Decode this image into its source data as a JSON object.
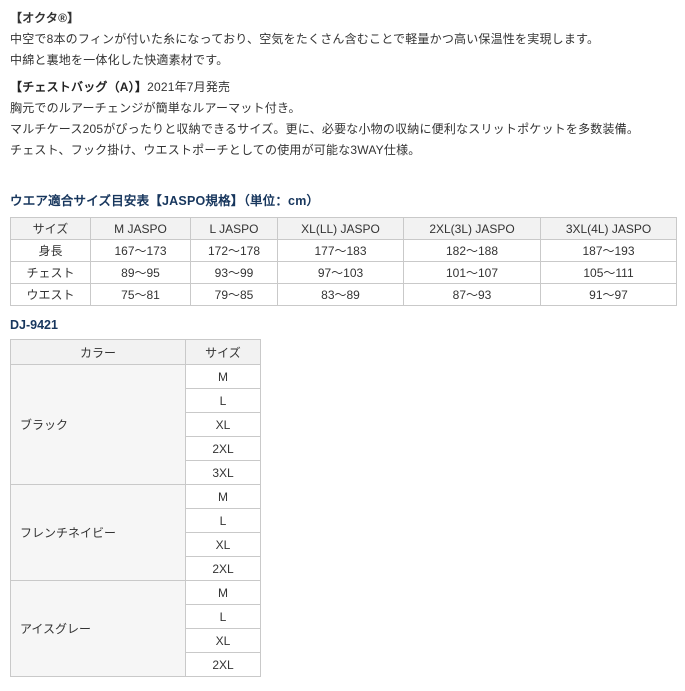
{
  "page": {
    "background": "#ffffff",
    "text_color": "#333333",
    "accent_blue": "#17365d",
    "table_border_color": "#c9c9c9",
    "table_header_bg": "#f2f2f2",
    "color_cell_bg": "#f6f6f6"
  },
  "description": {
    "octa_heading": "【オクタ®】",
    "octa_lines": [
      "中空で8本のフィンが付いた糸になっており、空気をたくさん含むことで軽量かつ高い保温性を実現します。",
      "中綿と裏地を一体化した快適素材です。"
    ],
    "chestbag_heading": "【チェストバッグ（A）】",
    "chestbag_release": "2021年7月発売",
    "chestbag_lines": [
      "胸元でのルアーチェンジが簡単なルアーマット付き。",
      "マルチケース205がぴったりと収納できるサイズ。更に、必要な小物の収納に便利なスリットポケットを多数装備。",
      "チェスト、フック掛け、ウエストポーチとしての使用が可能な3WAY仕様。"
    ]
  },
  "size_table": {
    "title": "ウエア適合サイズ目安表【JASPO規格】（単位：cm）",
    "headers": [
      "サイズ",
      "M JASPO",
      "L JASPO",
      "XL(LL) JASPO",
      "2XL(3L) JASPO",
      "3XL(4L) JASPO"
    ],
    "rows": [
      {
        "label": "身長",
        "values": [
          "167～173",
          "172～178",
          "177～183",
          "182～188",
          "187～193"
        ]
      },
      {
        "label": "チェスト",
        "values": [
          "89～95",
          "93～99",
          "97～103",
          "101～107",
          "105～111"
        ]
      },
      {
        "label": "ウエスト",
        "values": [
          "75～81",
          "79～85",
          "83～89",
          "87～93",
          "91～97"
        ]
      }
    ]
  },
  "model_table": {
    "title": "DJ-9421",
    "headers": [
      "カラー",
      "サイズ"
    ],
    "groups": [
      {
        "color": "ブラック",
        "sizes": [
          "M",
          "L",
          "XL",
          "2XL",
          "3XL"
        ]
      },
      {
        "color": "フレンチネイビー",
        "sizes": [
          "M",
          "L",
          "XL",
          "2XL"
        ]
      },
      {
        "color": "アイスグレー",
        "sizes": [
          "M",
          "L",
          "XL",
          "2XL"
        ]
      }
    ]
  }
}
